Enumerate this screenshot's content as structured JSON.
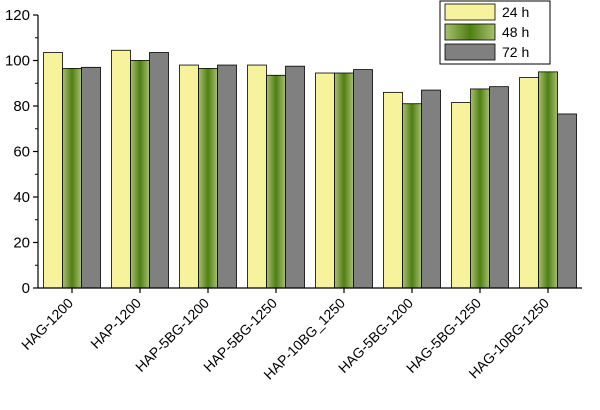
{
  "chart_data": {
    "type": "bar",
    "title": "",
    "xlabel": "",
    "ylabel": "",
    "ylim": [
      0,
      120
    ],
    "yticks": [
      0,
      20,
      40,
      60,
      80,
      100,
      120
    ],
    "grid": false,
    "legend_position": "top-right",
    "categories": [
      "HAG-1200",
      "HAP-1200",
      "HAP-5BG-1200",
      "HAP-5BG-1250",
      "HAP-10BG_1250",
      "HAG-5BG-1200",
      "HAG-5BG-1250",
      "HAG-10BG-1250"
    ],
    "series": [
      {
        "name": "24 h",
        "color": "#f7f29c",
        "values": [
          103.5,
          104.5,
          98.0,
          98.0,
          94.5,
          86.0,
          81.5,
          92.5
        ]
      },
      {
        "name": "48 h",
        "color": "#8fb05a",
        "values": [
          96.5,
          100.0,
          96.5,
          93.5,
          94.5,
          81.0,
          87.5,
          95.0
        ]
      },
      {
        "name": "72 h",
        "color": "#808080",
        "values": [
          97.0,
          103.5,
          98.0,
          97.5,
          96.0,
          87.0,
          88.5,
          76.5
        ]
      }
    ]
  }
}
